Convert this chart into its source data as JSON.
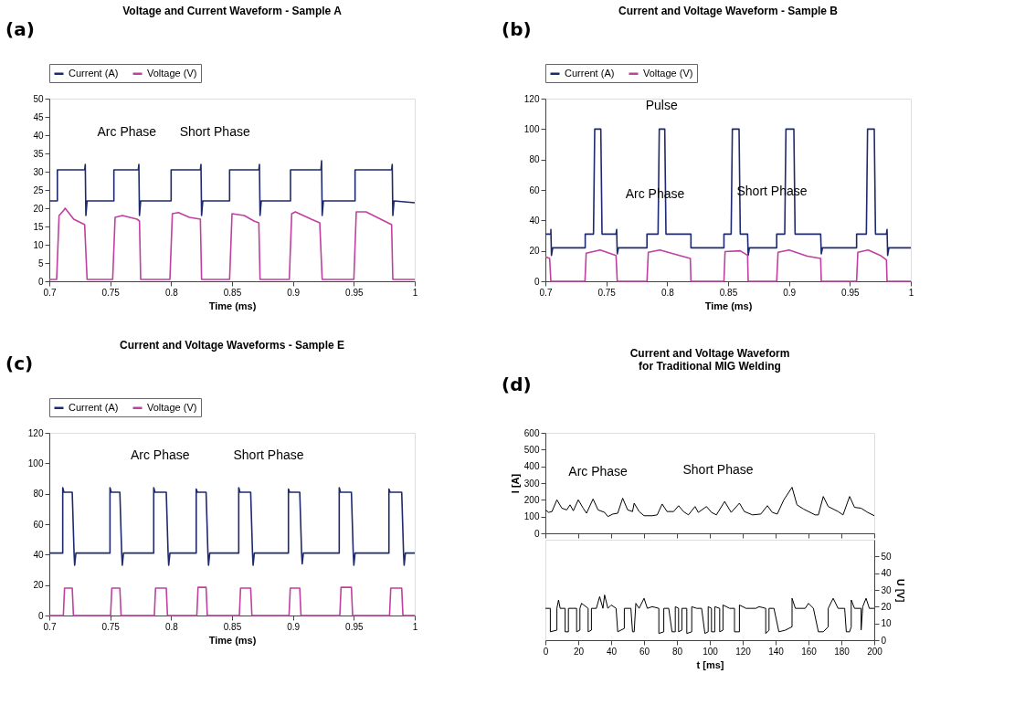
{
  "chart_data": [
    {
      "type": "line",
      "title": "Voltage and Current Waveform - Sample A",
      "xlabel": "Time (ms)",
      "xlim": [
        0.7,
        1
      ],
      "xticks": [
        0.7,
        0.75,
        0.8,
        0.85,
        0.9,
        0.95,
        1
      ],
      "ylim": [
        0,
        50
      ],
      "yticks": [
        0,
        5,
        10,
        15,
        20,
        25,
        30,
        35,
        40,
        45,
        50
      ],
      "grid": false,
      "legend": "top",
      "annotations": [
        "(a)",
        "Arc Phase",
        "Short Phase"
      ],
      "series": [
        {
          "name": "Current (A)",
          "color": "#1f2a6e",
          "x": [
            0.7,
            0.7066,
            0.7066,
            0.729,
            0.7295,
            0.73,
            0.731,
            0.753,
            0.753,
            0.773,
            0.7735,
            0.774,
            0.775,
            0.8,
            0.8,
            0.824,
            0.8245,
            0.825,
            0.826,
            0.848,
            0.848,
            0.872,
            0.8725,
            0.873,
            0.874,
            0.898,
            0.898,
            0.923,
            0.9235,
            0.924,
            0.925,
            0.951,
            0.951,
            0.981,
            0.9815,
            0.982,
            0.983,
            1
          ],
          "values": [
            22,
            22,
            30.5,
            30.5,
            32,
            18,
            22,
            22,
            30.5,
            30.5,
            32,
            18,
            22,
            22,
            30.5,
            30.5,
            32,
            18,
            22,
            22,
            30.5,
            30.5,
            32,
            18,
            22,
            22,
            30.5,
            30.5,
            33,
            18,
            22,
            22,
            30.5,
            30.5,
            32,
            18,
            22,
            21.5
          ]
        },
        {
          "name": "Voltage (V)",
          "color": "#c040a0",
          "x": [
            0.7,
            0.706,
            0.708,
            0.712,
            0.713,
            0.72,
            0.729,
            0.731,
            0.752,
            0.754,
            0.76,
            0.772,
            0.774,
            0.775,
            0.799,
            0.801,
            0.806,
            0.815,
            0.824,
            0.825,
            0.848,
            0.85,
            0.86,
            0.868,
            0.872,
            0.873,
            0.897,
            0.899,
            0.902,
            0.915,
            0.922,
            0.924,
            0.95,
            0.952,
            0.96,
            0.972,
            0.981,
            0.982,
            1
          ],
          "values": [
            0.5,
            0.5,
            18,
            19.5,
            20,
            17,
            15.5,
            0.5,
            0.5,
            17.5,
            18,
            17,
            16.5,
            0.5,
            0.5,
            18.5,
            18.8,
            17.5,
            17,
            0.5,
            0.5,
            18.5,
            18,
            16.5,
            16,
            0.5,
            0.5,
            18.5,
            19,
            17,
            16,
            0.5,
            0.5,
            19,
            19,
            17,
            15.5,
            0.5,
            0.5
          ]
        }
      ]
    },
    {
      "type": "line",
      "title": "Current and Voltage Waveform - Sample B",
      "xlabel": "Time (ms)",
      "xlim": [
        0.7,
        1
      ],
      "xticks": [
        0.7,
        0.75,
        0.8,
        0.85,
        0.9,
        0.95,
        1
      ],
      "ylim": [
        0,
        120
      ],
      "yticks": [
        0,
        20,
        40,
        60,
        80,
        100,
        120
      ],
      "grid": false,
      "legend": "top",
      "annotations": [
        "(b)",
        "Pulse",
        "Arc Phase",
        "Short Phase"
      ],
      "series": [
        {
          "name": "Current (A)",
          "color": "#1f2a6e",
          "x": [
            0.7,
            0.7045,
            0.7045,
            0.705,
            0.706,
            0.7327,
            0.7327,
            0.7395,
            0.7405,
            0.7455,
            0.7465,
            0.758,
            0.7585,
            0.759,
            0.76,
            0.7834,
            0.7834,
            0.7925,
            0.7935,
            0.798,
            0.799,
            0.8195,
            0.8195,
            0.8466,
            0.8466,
            0.8525,
            0.8535,
            0.859,
            0.86,
            0.866,
            0.8665,
            0.8675,
            0.8899,
            0.8899,
            0.8965,
            0.8975,
            0.904,
            0.905,
            0.926,
            0.9265,
            0.9275,
            0.9555,
            0.9555,
            0.9635,
            0.9645,
            0.97,
            0.971,
            0.98,
            0.9805,
            0.981,
            0.982,
            1
          ],
          "values": [
            31,
            31,
            34,
            17,
            22,
            22,
            31,
            31,
            100,
            100,
            31,
            31,
            34,
            18,
            22,
            22,
            31,
            31,
            100,
            100,
            31,
            31,
            22,
            22,
            31,
            31,
            100,
            100,
            31,
            31,
            17,
            22,
            22,
            31,
            31,
            100,
            100,
            31,
            31,
            18,
            22,
            22,
            31,
            31,
            100,
            100,
            31,
            31,
            34,
            17,
            22,
            22
          ]
        },
        {
          "name": "Voltage (V)",
          "color": "#c040a0",
          "x": [
            0.7,
            0.7035,
            0.7045,
            0.7325,
            0.7335,
            0.745,
            0.758,
            0.759,
            0.7834,
            0.7845,
            0.794,
            0.81,
            0.819,
            0.8195,
            0.8466,
            0.8475,
            0.86,
            0.866,
            0.8665,
            0.8899,
            0.891,
            0.9,
            0.915,
            0.926,
            0.9265,
            0.9555,
            0.9565,
            0.965,
            0.975,
            0.98,
            0.9805,
            1
          ],
          "values": [
            16,
            15,
            0,
            0,
            18.5,
            20.5,
            17,
            0,
            0,
            19,
            20.5,
            17,
            15,
            0,
            0,
            19.5,
            20,
            17,
            0,
            0,
            19,
            20.5,
            16.5,
            15,
            0,
            0,
            19,
            20.5,
            17,
            14,
            0,
            0
          ]
        }
      ]
    },
    {
      "type": "line",
      "title": "Current and Voltage Waveforms - Sample E",
      "xlabel": "Time (ms)",
      "xlim": [
        0.7,
        1
      ],
      "xticks": [
        0.7,
        0.75,
        0.8,
        0.85,
        0.9,
        0.95,
        1
      ],
      "ylim": [
        0,
        120
      ],
      "yticks": [
        0,
        20,
        40,
        60,
        80,
        100,
        120
      ],
      "grid": false,
      "legend": "top",
      "annotations": [
        "(c)",
        "Arc Phase",
        "Short Phase"
      ],
      "series": [
        {
          "name": "Current (A)",
          "color": "#1f2a6e",
          "x": [
            0.7,
            0.711,
            0.711,
            0.712,
            0.7188,
            0.7203,
            0.7208,
            0.7218,
            0.7498,
            0.7498,
            0.7508,
            0.7579,
            0.7594,
            0.7599,
            0.7609,
            0.7857,
            0.7857,
            0.7867,
            0.796,
            0.7975,
            0.798,
            0.799,
            0.8206,
            0.8206,
            0.8216,
            0.8287,
            0.8302,
            0.8307,
            0.8317,
            0.8555,
            0.8555,
            0.8565,
            0.8653,
            0.8668,
            0.8673,
            0.8683,
            0.8963,
            0.8963,
            0.8973,
            0.9056,
            0.9071,
            0.9076,
            0.9086,
            0.938,
            0.938,
            0.939,
            0.948,
            0.9495,
            0.95,
            0.951,
            0.9788,
            0.9788,
            0.9798,
            0.9893,
            0.9908,
            0.9913,
            0.9923,
            1
          ],
          "values": [
            41,
            41,
            84,
            81,
            81,
            41,
            33,
            41,
            41,
            84,
            81,
            81,
            41,
            33,
            41,
            41,
            84,
            81,
            81,
            41,
            33,
            41,
            41,
            83,
            81,
            81,
            41,
            33,
            41,
            41,
            84,
            81,
            81,
            41,
            33,
            41,
            41,
            83,
            81,
            81,
            41,
            34,
            41,
            41,
            84,
            81,
            81,
            41,
            33,
            41,
            41,
            83,
            81,
            81,
            41,
            33,
            41,
            41
          ]
        },
        {
          "name": "Voltage (V)",
          "color": "#c040a0",
          "x": [
            0.7,
            0.7115,
            0.7125,
            0.7188,
            0.7198,
            0.7503,
            0.7513,
            0.7579,
            0.7589,
            0.7862,
            0.7872,
            0.796,
            0.797,
            0.8211,
            0.8221,
            0.8287,
            0.8297,
            0.856,
            0.857,
            0.8653,
            0.8663,
            0.8968,
            0.8978,
            0.9056,
            0.9066,
            0.9385,
            0.9395,
            0.948,
            0.949,
            0.9793,
            0.9803,
            0.9893,
            0.9903,
            1
          ],
          "values": [
            0,
            0,
            18,
            18,
            0,
            0,
            18,
            18,
            0,
            0,
            18,
            18,
            0,
            0,
            18.5,
            18.5,
            0,
            0,
            18,
            18,
            0,
            0,
            18,
            18,
            0,
            0,
            18.5,
            18.5,
            0,
            0,
            18,
            18,
            0,
            0
          ]
        }
      ]
    },
    {
      "type": "line",
      "title": "Current and Voltage Waveform\nfor Traditional MIG Welding",
      "ylabel": "I [A]",
      "xlim": [
        0,
        200
      ],
      "xticks": [
        0,
        20,
        40,
        60,
        80,
        100,
        120,
        140,
        160,
        180,
        200
      ],
      "ylim": [
        0,
        600
      ],
      "yticks": [
        0,
        100,
        200,
        300,
        400,
        500,
        600
      ],
      "grid": false,
      "tick_labels": "y",
      "annotations": [
        "(d)",
        "Arc Phase",
        "Short Phase"
      ],
      "series": [
        {
          "color": "#000000",
          "x": [
            0,
            2,
            4,
            7,
            10,
            13,
            15,
            17,
            20,
            23,
            25,
            29,
            32,
            36,
            38,
            41,
            44,
            47,
            50,
            53,
            54,
            57,
            60,
            65,
            68,
            71,
            74,
            78,
            81,
            84,
            87,
            91,
            93,
            98,
            101,
            104,
            109,
            113,
            118,
            121,
            126,
            131,
            135,
            138,
            141,
            145,
            150,
            153,
            157,
            160,
            164,
            166,
            169,
            172,
            178,
            181,
            185,
            188,
            192,
            196,
            200
          ],
          "values": [
            140,
            125,
            130,
            200,
            150,
            140,
            170,
            135,
            200,
            150,
            120,
            205,
            140,
            125,
            100,
            115,
            120,
            210,
            140,
            130,
            180,
            130,
            105,
            105,
            110,
            175,
            130,
            130,
            165,
            130,
            110,
            160,
            125,
            160,
            125,
            110,
            190,
            125,
            180,
            130,
            110,
            115,
            165,
            125,
            115,
            200,
            275,
            170,
            145,
            130,
            110,
            110,
            220,
            160,
            130,
            110,
            220,
            155,
            150,
            125,
            105
          ]
        }
      ]
    },
    {
      "type": "line",
      "xlabel": "t [ms]",
      "y2label": "U [V]",
      "xlim": [
        0,
        200
      ],
      "xticks": [
        0,
        20,
        40,
        60,
        80,
        100,
        120,
        140,
        160,
        180,
        200
      ],
      "y2lim": [
        0,
        60
      ],
      "y2ticks": [
        0,
        10,
        20,
        30,
        40,
        50
      ],
      "grid": false,
      "series": [
        {
          "color": "#000000",
          "axis": "y2",
          "x": [
            0,
            3,
            3,
            7,
            7,
            8,
            9,
            12,
            12,
            14,
            14,
            19,
            19,
            21,
            21,
            22,
            26,
            26,
            28,
            28,
            31,
            33,
            35,
            36,
            38,
            40,
            43,
            44,
            48,
            48,
            52,
            53,
            54,
            55,
            57,
            60,
            62,
            65,
            69,
            69,
            72,
            72,
            75,
            77,
            79,
            79,
            81,
            81,
            83,
            83,
            86,
            86,
            89,
            89,
            92,
            95,
            97,
            99,
            99,
            101,
            101,
            103,
            103,
            106,
            106,
            108,
            108,
            112,
            115,
            115,
            118,
            118,
            122,
            128,
            130,
            134,
            134,
            136,
            136,
            139,
            142,
            146,
            150,
            150,
            152,
            158,
            160,
            163,
            166,
            169,
            172,
            172,
            175,
            178,
            182,
            183,
            185,
            186,
            186,
            188,
            192,
            192,
            193,
            195,
            197,
            200
          ],
          "values": [
            19,
            19,
            5,
            6,
            19,
            24,
            19,
            19,
            5,
            5,
            19,
            19,
            5,
            6,
            19,
            22,
            19,
            5,
            6,
            19,
            19,
            26,
            19,
            27,
            19,
            21,
            19,
            5,
            7,
            19,
            19,
            5,
            5,
            22,
            19,
            25,
            19,
            20,
            19,
            4,
            5,
            19,
            19,
            5,
            5,
            20,
            19,
            5,
            6,
            19,
            19,
            4,
            5,
            20,
            19,
            19,
            4,
            5,
            20,
            19,
            5,
            5,
            20,
            19,
            5,
            6,
            21,
            19,
            19,
            5,
            5,
            21,
            19,
            19,
            20,
            19,
            4,
            6,
            19,
            19,
            5,
            6,
            8,
            25,
            19,
            19,
            22,
            19,
            5,
            5,
            8,
            19,
            25,
            19,
            19,
            5,
            5,
            8,
            24,
            19,
            19,
            6,
            20,
            25,
            19,
            19
          ]
        }
      ]
    }
  ]
}
